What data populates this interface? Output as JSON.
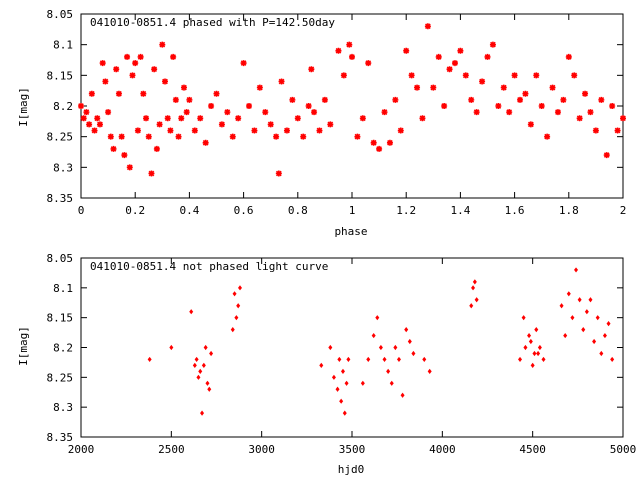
{
  "chart_data": [
    {
      "type": "scatter",
      "title": "041010-0851.4 phased with P=142.50day",
      "xlabel": "phase",
      "ylabel": "I[mag]",
      "xlim": [
        0,
        2
      ],
      "ylim": [
        8.05,
        8.35
      ],
      "y_inverted": true,
      "grid": false,
      "marker_color": "#ff0000",
      "marker": "star",
      "xticks": [
        "0",
        "0.2",
        "0.4",
        "0.6",
        "0.8",
        "1",
        "1.2",
        "1.4",
        "1.6",
        "1.8",
        "2"
      ],
      "yticks": [
        "8.05",
        "8.1",
        "8.15",
        "8.2",
        "8.25",
        "8.3",
        "8.35"
      ],
      "points": [
        [
          0.0,
          8.2
        ],
        [
          0.01,
          8.22
        ],
        [
          0.02,
          8.21
        ],
        [
          0.03,
          8.23
        ],
        [
          0.04,
          8.18
        ],
        [
          0.05,
          8.24
        ],
        [
          0.06,
          8.22
        ],
        [
          0.07,
          8.23
        ],
        [
          0.08,
          8.13
        ],
        [
          0.09,
          8.16
        ],
        [
          0.1,
          8.21
        ],
        [
          0.11,
          8.25
        ],
        [
          0.12,
          8.27
        ],
        [
          0.13,
          8.14
        ],
        [
          0.14,
          8.18
        ],
        [
          0.15,
          8.25
        ],
        [
          0.16,
          8.28
        ],
        [
          0.17,
          8.12
        ],
        [
          0.18,
          8.3
        ],
        [
          0.19,
          8.15
        ],
        [
          0.2,
          8.13
        ],
        [
          0.21,
          8.24
        ],
        [
          0.22,
          8.12
        ],
        [
          0.23,
          8.18
        ],
        [
          0.24,
          8.22
        ],
        [
          0.25,
          8.25
        ],
        [
          0.26,
          8.31
        ],
        [
          0.27,
          8.14
        ],
        [
          0.28,
          8.27
        ],
        [
          0.29,
          8.23
        ],
        [
          0.3,
          8.1
        ],
        [
          0.31,
          8.16
        ],
        [
          0.32,
          8.22
        ],
        [
          0.33,
          8.24
        ],
        [
          0.34,
          8.12
        ],
        [
          0.35,
          8.19
        ],
        [
          0.36,
          8.25
        ],
        [
          0.37,
          8.22
        ],
        [
          0.38,
          8.17
        ],
        [
          0.39,
          8.21
        ],
        [
          0.4,
          8.19
        ],
        [
          0.42,
          8.24
        ],
        [
          0.44,
          8.22
        ],
        [
          0.46,
          8.26
        ],
        [
          0.48,
          8.2
        ],
        [
          0.5,
          8.18
        ],
        [
          0.52,
          8.23
        ],
        [
          0.54,
          8.21
        ],
        [
          0.56,
          8.25
        ],
        [
          0.58,
          8.22
        ],
        [
          0.6,
          8.13
        ],
        [
          0.62,
          8.2
        ],
        [
          0.64,
          8.24
        ],
        [
          0.66,
          8.17
        ],
        [
          0.68,
          8.21
        ],
        [
          0.7,
          8.23
        ],
        [
          0.72,
          8.25
        ],
        [
          0.73,
          8.31
        ],
        [
          0.74,
          8.16
        ],
        [
          0.76,
          8.24
        ],
        [
          0.78,
          8.19
        ],
        [
          0.8,
          8.22
        ],
        [
          0.82,
          8.25
        ],
        [
          0.84,
          8.2
        ],
        [
          0.85,
          8.14
        ],
        [
          0.86,
          8.21
        ],
        [
          0.88,
          8.24
        ],
        [
          0.9,
          8.19
        ],
        [
          0.92,
          8.23
        ],
        [
          0.95,
          8.11
        ],
        [
          0.97,
          8.15
        ],
        [
          0.99,
          8.1
        ],
        [
          1.0,
          8.12
        ],
        [
          1.02,
          8.25
        ],
        [
          1.04,
          8.22
        ],
        [
          1.06,
          8.13
        ],
        [
          1.08,
          8.26
        ],
        [
          1.1,
          8.27
        ],
        [
          1.12,
          8.21
        ],
        [
          1.14,
          8.26
        ],
        [
          1.16,
          8.19
        ],
        [
          1.18,
          8.24
        ],
        [
          1.2,
          8.11
        ],
        [
          1.22,
          8.15
        ],
        [
          1.24,
          8.17
        ],
        [
          1.26,
          8.22
        ],
        [
          1.28,
          8.07
        ],
        [
          1.3,
          8.17
        ],
        [
          1.32,
          8.12
        ],
        [
          1.34,
          8.2
        ],
        [
          1.36,
          8.14
        ],
        [
          1.38,
          8.13
        ],
        [
          1.4,
          8.11
        ],
        [
          1.42,
          8.15
        ],
        [
          1.44,
          8.19
        ],
        [
          1.46,
          8.21
        ],
        [
          1.48,
          8.16
        ],
        [
          1.5,
          8.12
        ],
        [
          1.52,
          8.1
        ],
        [
          1.54,
          8.2
        ],
        [
          1.56,
          8.17
        ],
        [
          1.58,
          8.21
        ],
        [
          1.6,
          8.15
        ],
        [
          1.62,
          8.19
        ],
        [
          1.64,
          8.18
        ],
        [
          1.66,
          8.23
        ],
        [
          1.68,
          8.15
        ],
        [
          1.7,
          8.2
        ],
        [
          1.72,
          8.25
        ],
        [
          1.74,
          8.17
        ],
        [
          1.76,
          8.21
        ],
        [
          1.78,
          8.19
        ],
        [
          1.8,
          8.12
        ],
        [
          1.82,
          8.15
        ],
        [
          1.84,
          8.22
        ],
        [
          1.86,
          8.18
        ],
        [
          1.88,
          8.21
        ],
        [
          1.9,
          8.24
        ],
        [
          1.92,
          8.19
        ],
        [
          1.94,
          8.28
        ],
        [
          1.96,
          8.2
        ],
        [
          1.98,
          8.24
        ],
        [
          2.0,
          8.22
        ]
      ]
    },
    {
      "type": "scatter",
      "title": "041010-0851.4 not phased light curve",
      "xlabel": "hjd0",
      "ylabel": "I[mag]",
      "xlim": [
        2000,
        5000
      ],
      "ylim": [
        8.05,
        8.35
      ],
      "y_inverted": true,
      "grid": false,
      "marker_color": "#ff0000",
      "marker": "diamond",
      "xticks": [
        "2000",
        "2500",
        "3000",
        "3500",
        "4000",
        "4500",
        "5000"
      ],
      "yticks": [
        "8.05",
        "8.1",
        "8.15",
        "8.2",
        "8.25",
        "8.3",
        "8.35"
      ],
      "points": [
        [
          2380,
          8.22
        ],
        [
          2500,
          8.2
        ],
        [
          2610,
          8.14
        ],
        [
          2630,
          8.23
        ],
        [
          2640,
          8.22
        ],
        [
          2650,
          8.25
        ],
        [
          2660,
          8.24
        ],
        [
          2670,
          8.31
        ],
        [
          2680,
          8.23
        ],
        [
          2690,
          8.2
        ],
        [
          2700,
          8.26
        ],
        [
          2710,
          8.27
        ],
        [
          2720,
          8.21
        ],
        [
          2840,
          8.17
        ],
        [
          2850,
          8.11
        ],
        [
          2860,
          8.15
        ],
        [
          2870,
          8.13
        ],
        [
          2880,
          8.1
        ],
        [
          3330,
          8.23
        ],
        [
          3380,
          8.2
        ],
        [
          3400,
          8.25
        ],
        [
          3420,
          8.27
        ],
        [
          3430,
          8.22
        ],
        [
          3440,
          8.29
        ],
        [
          3450,
          8.24
        ],
        [
          3460,
          8.31
        ],
        [
          3470,
          8.26
        ],
        [
          3480,
          8.22
        ],
        [
          3560,
          8.26
        ],
        [
          3590,
          8.22
        ],
        [
          3620,
          8.18
        ],
        [
          3640,
          8.15
        ],
        [
          3660,
          8.2
        ],
        [
          3680,
          8.22
        ],
        [
          3700,
          8.24
        ],
        [
          3720,
          8.26
        ],
        [
          3740,
          8.2
        ],
        [
          3760,
          8.22
        ],
        [
          3780,
          8.28
        ],
        [
          3800,
          8.17
        ],
        [
          3820,
          8.19
        ],
        [
          3840,
          8.21
        ],
        [
          3900,
          8.22
        ],
        [
          3930,
          8.24
        ],
        [
          4160,
          8.13
        ],
        [
          4170,
          8.1
        ],
        [
          4180,
          8.09
        ],
        [
          4190,
          8.12
        ],
        [
          4430,
          8.22
        ],
        [
          4450,
          8.15
        ],
        [
          4460,
          8.2
        ],
        [
          4480,
          8.18
        ],
        [
          4490,
          8.19
        ],
        [
          4500,
          8.23
        ],
        [
          4510,
          8.21
        ],
        [
          4520,
          8.17
        ],
        [
          4530,
          8.21
        ],
        [
          4540,
          8.2
        ],
        [
          4560,
          8.22
        ],
        [
          4660,
          8.13
        ],
        [
          4680,
          8.18
        ],
        [
          4700,
          8.11
        ],
        [
          4720,
          8.15
        ],
        [
          4740,
          8.07
        ],
        [
          4760,
          8.12
        ],
        [
          4780,
          8.17
        ],
        [
          4800,
          8.14
        ],
        [
          4820,
          8.12
        ],
        [
          4840,
          8.19
        ],
        [
          4860,
          8.15
        ],
        [
          4880,
          8.21
        ],
        [
          4900,
          8.18
        ],
        [
          4920,
          8.16
        ],
        [
          4940,
          8.22
        ]
      ]
    }
  ]
}
